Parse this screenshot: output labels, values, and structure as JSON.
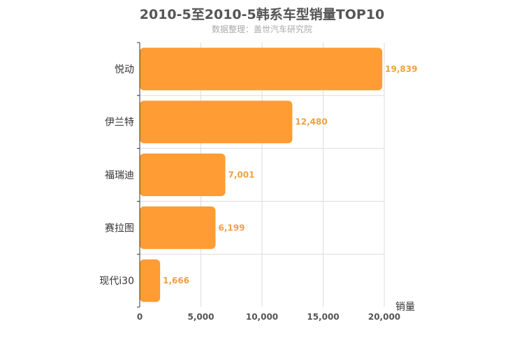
{
  "chart_data": {
    "type": "bar",
    "orientation": "horizontal",
    "title": "2010-5至2010-5韩系车型销量TOP10",
    "subtitle": "数据整理：盖世汽车研究院",
    "categories": [
      "悦动",
      "伊兰特",
      "福瑞迪",
      "赛拉图",
      "现代i30"
    ],
    "values": [
      19839,
      12480,
      7001,
      6199,
      1666
    ],
    "value_labels": [
      "19,839",
      "12,480",
      "7,001",
      "6,199",
      "1,666"
    ],
    "xlabel": "销量",
    "ylabel": "",
    "xlim": [
      0,
      20000
    ],
    "xticks": [
      0,
      5000,
      10000,
      15000,
      20000
    ],
    "xtick_labels": [
      "0",
      "5,000",
      "10,000",
      "15,000",
      "20,000"
    ],
    "grid": true,
    "bar_color": "#ff9c33",
    "label_color": "#f0a040"
  }
}
